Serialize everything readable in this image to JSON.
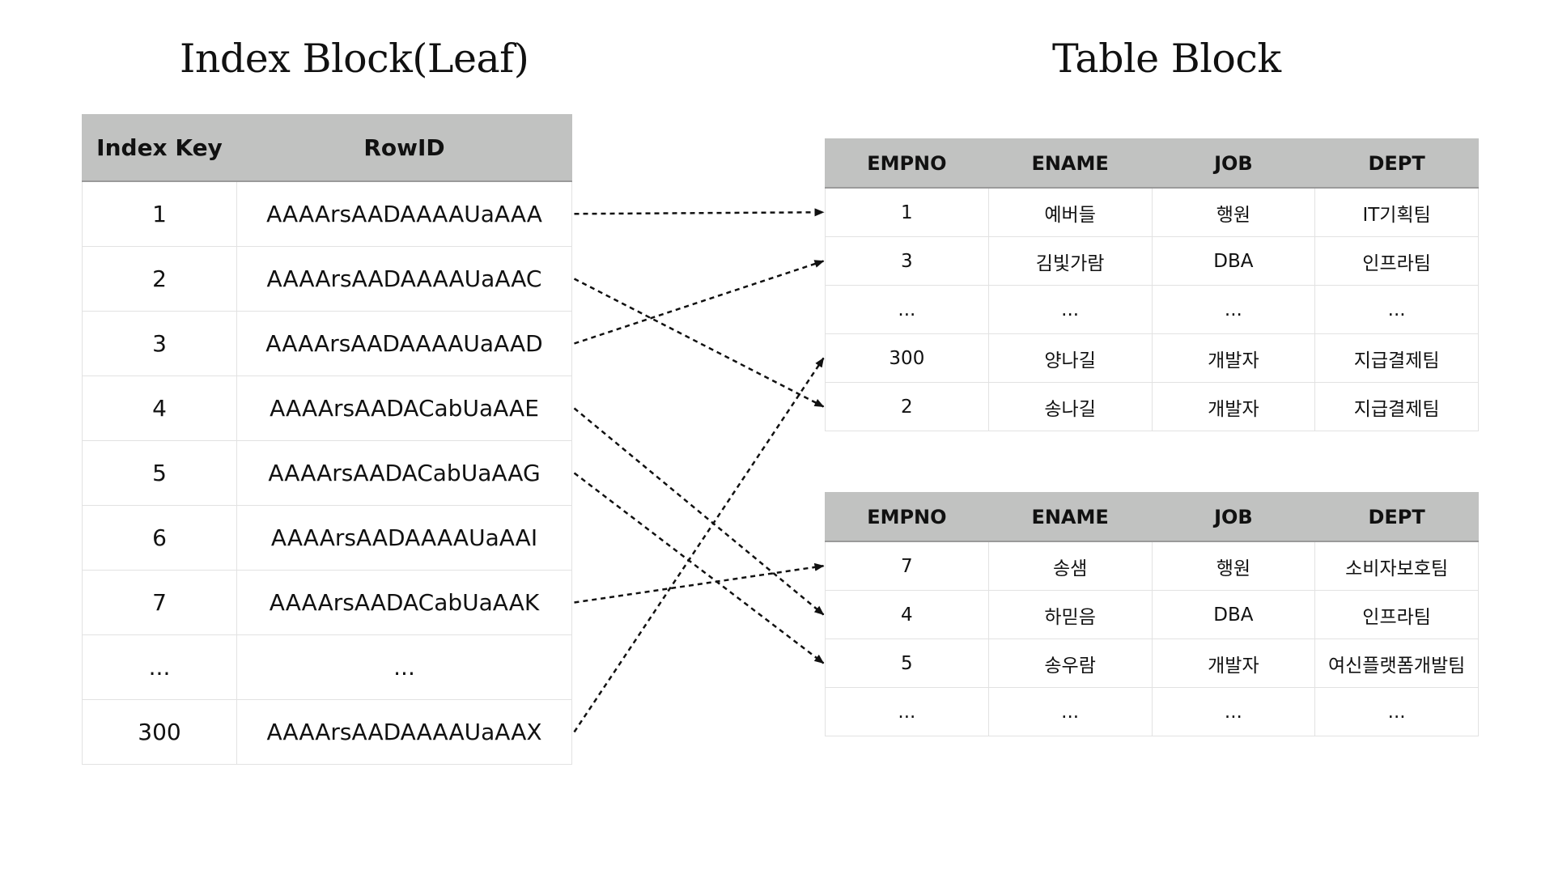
{
  "titles": {
    "index": "Index Block(Leaf)",
    "table": "Table Block"
  },
  "index_block": {
    "headers": [
      "Index Key",
      "RowID"
    ],
    "rows": [
      {
        "key": "1",
        "rowid": "AAAArsAADAAAAUaAAA"
      },
      {
        "key": "2",
        "rowid": "AAAArsAADAAAAUaAAC"
      },
      {
        "key": "3",
        "rowid": "AAAArsAADAAAAUaAAD"
      },
      {
        "key": "4",
        "rowid": "AAAArsAADACabUaAAE"
      },
      {
        "key": "5",
        "rowid": "AAAArsAADACabUaAAG"
      },
      {
        "key": "6",
        "rowid": "AAAArsAADAAAAUaAAI"
      },
      {
        "key": "7",
        "rowid": "AAAArsAADACabUaAAK"
      },
      {
        "key": "...",
        "rowid": "..."
      },
      {
        "key": "300",
        "rowid": "AAAArsAADAAAAUaAAX"
      }
    ]
  },
  "table_blocks": [
    {
      "headers": [
        "EMPNO",
        "ENAME",
        "JOB",
        "DEPT"
      ],
      "rows": [
        [
          "1",
          "예버들",
          "행원",
          "IT기획팀"
        ],
        [
          "3",
          "김빛가람",
          "DBA",
          "인프라팀"
        ],
        [
          "...",
          "...",
          "...",
          "..."
        ],
        [
          "300",
          "양나길",
          "개발자",
          "지급결제팀"
        ],
        [
          "2",
          "송나길",
          "개발자",
          "지급결제팀"
        ]
      ]
    },
    {
      "headers": [
        "EMPNO",
        "ENAME",
        "JOB",
        "DEPT"
      ],
      "rows": [
        [
          "7",
          "송샘",
          "행원",
          "소비자보호팀"
        ],
        [
          "4",
          "하믿음",
          "DBA",
          "인프라팀"
        ],
        [
          "5",
          "송우람",
          "개발자",
          "여신플랫폼개발팀"
        ],
        [
          "...",
          "...",
          "...",
          "..."
        ]
      ]
    }
  ],
  "links": [
    {
      "from_key": "1",
      "to_block": 0,
      "to_row": 0
    },
    {
      "from_key": "2",
      "to_block": 0,
      "to_row": 4
    },
    {
      "from_key": "3",
      "to_block": 0,
      "to_row": 1
    },
    {
      "from_key": "4",
      "to_block": 1,
      "to_row": 1
    },
    {
      "from_key": "5",
      "to_block": 1,
      "to_row": 2
    },
    {
      "from_key": "7",
      "to_block": 1,
      "to_row": 0
    },
    {
      "from_key": "300",
      "to_block": 0,
      "to_row": 3
    }
  ],
  "colors": {
    "header_bg": "#c1c2c1",
    "border": "#e2e2e2",
    "arrow": "#111111"
  }
}
